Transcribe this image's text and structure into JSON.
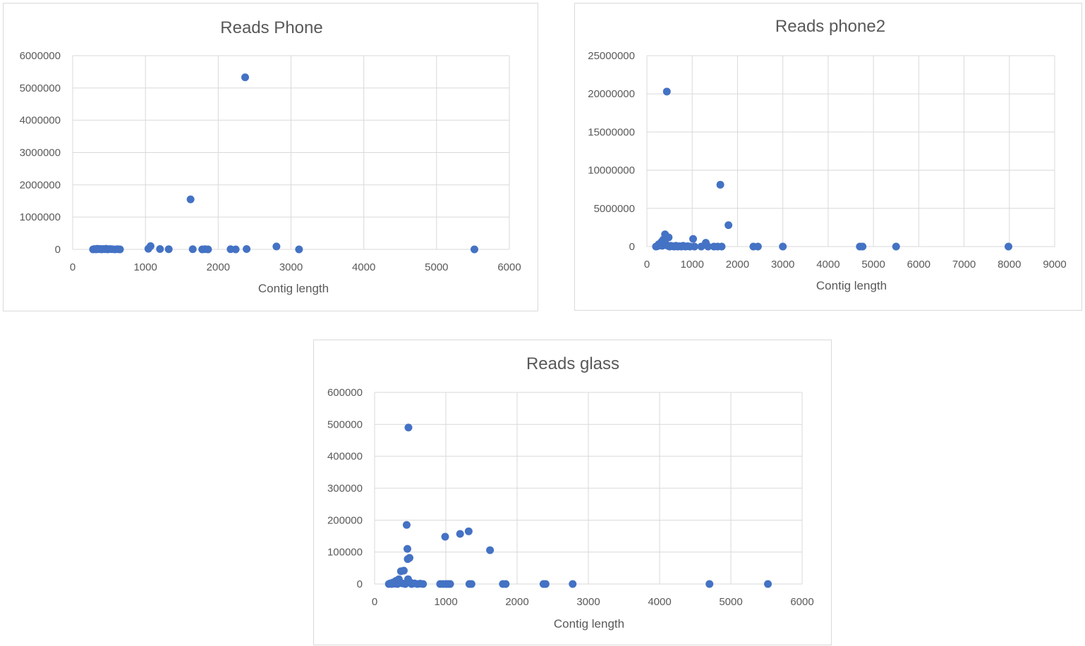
{
  "colors": {
    "series": "#4472c4",
    "grid": "#d9d9d9",
    "text": "#595959"
  },
  "chart_data": [
    {
      "id": "phone",
      "type": "scatter",
      "title": "Reads Phone",
      "xlabel": "Contig length",
      "ylabel": "",
      "xlim": [
        0,
        6000
      ],
      "ylim": [
        0,
        6000000
      ],
      "x_ticks": [
        0,
        1000,
        2000,
        3000,
        4000,
        5000,
        6000
      ],
      "y_ticks": [
        0,
        1000000,
        2000000,
        3000000,
        4000000,
        5000000,
        6000000
      ],
      "x_tick_labels": [
        "0",
        "1000",
        "2000",
        "3000",
        "4000",
        "5000",
        "6000"
      ],
      "y_tick_labels": [
        "0",
        "1000000",
        "2000000",
        "3000000",
        "4000000",
        "5000000",
        "6000000"
      ],
      "grid": true,
      "legend": "none",
      "points": [
        [
          280,
          0
        ],
        [
          300,
          10000
        ],
        [
          320,
          0
        ],
        [
          340,
          20000
        ],
        [
          360,
          5000
        ],
        [
          380,
          15000
        ],
        [
          400,
          0
        ],
        [
          420,
          10000
        ],
        [
          440,
          5000
        ],
        [
          460,
          20000
        ],
        [
          480,
          0
        ],
        [
          510,
          10000
        ],
        [
          540,
          5000
        ],
        [
          580,
          0
        ],
        [
          620,
          5000
        ],
        [
          650,
          0
        ],
        [
          1040,
          20000
        ],
        [
          1070,
          100000
        ],
        [
          1200,
          10000
        ],
        [
          1320,
          5000
        ],
        [
          1620,
          1550000
        ],
        [
          1650,
          5000
        ],
        [
          1780,
          0
        ],
        [
          1820,
          5000
        ],
        [
          1860,
          0
        ],
        [
          2170,
          5000
        ],
        [
          2240,
          0
        ],
        [
          2370,
          5330000
        ],
        [
          2390,
          10000
        ],
        [
          2800,
          90000
        ],
        [
          3110,
          0
        ],
        [
          5520,
          0
        ]
      ]
    },
    {
      "id": "phone2",
      "type": "scatter",
      "title": "Reads phone2",
      "xlabel": "Contig length",
      "ylabel": "",
      "xlim": [
        0,
        9000
      ],
      "ylim": [
        0,
        25000000
      ],
      "x_ticks": [
        0,
        1000,
        2000,
        3000,
        4000,
        5000,
        6000,
        7000,
        8000,
        9000
      ],
      "y_ticks": [
        0,
        5000000,
        10000000,
        15000000,
        20000000,
        25000000
      ],
      "x_tick_labels": [
        "0",
        "1000",
        "2000",
        "3000",
        "4000",
        "5000",
        "6000",
        "7000",
        "8000",
        "9000"
      ],
      "y_tick_labels": [
        "0",
        "5000000",
        "10000000",
        "15000000",
        "20000000",
        "25000000"
      ],
      "grid": true,
      "legend": "none",
      "points": [
        [
          200,
          0
        ],
        [
          230,
          50000
        ],
        [
          260,
          300000
        ],
        [
          290,
          150000
        ],
        [
          320,
          600000
        ],
        [
          340,
          100000
        ],
        [
          360,
          900000
        ],
        [
          380,
          200000
        ],
        [
          400,
          1600000
        ],
        [
          420,
          300000
        ],
        [
          440,
          20300000
        ],
        [
          460,
          100000
        ],
        [
          480,
          1200000
        ],
        [
          500,
          0
        ],
        [
          530,
          100000
        ],
        [
          560,
          50000
        ],
        [
          600,
          0
        ],
        [
          640,
          100000
        ],
        [
          680,
          0
        ],
        [
          720,
          50000
        ],
        [
          760,
          0
        ],
        [
          800,
          100000
        ],
        [
          850,
          0
        ],
        [
          900,
          50000
        ],
        [
          950,
          0
        ],
        [
          1020,
          1000000
        ],
        [
          1050,
          0
        ],
        [
          1200,
          0
        ],
        [
          1300,
          500000
        ],
        [
          1350,
          0
        ],
        [
          1480,
          0
        ],
        [
          1560,
          0
        ],
        [
          1620,
          8100000
        ],
        [
          1650,
          0
        ],
        [
          1800,
          2800000
        ],
        [
          2350,
          0
        ],
        [
          2450,
          0
        ],
        [
          3000,
          0
        ],
        [
          4700,
          0
        ],
        [
          4760,
          0
        ],
        [
          5500,
          0
        ],
        [
          7980,
          0
        ]
      ]
    },
    {
      "id": "glass",
      "type": "scatter",
      "title": "Reads glass",
      "xlabel": "Contig length",
      "ylabel": "",
      "xlim": [
        0,
        6000
      ],
      "ylim": [
        0,
        600000
      ],
      "x_ticks": [
        0,
        1000,
        2000,
        3000,
        4000,
        5000,
        6000
      ],
      "y_ticks": [
        0,
        100000,
        200000,
        300000,
        400000,
        500000,
        600000
      ],
      "x_tick_labels": [
        "0",
        "1000",
        "2000",
        "3000",
        "4000",
        "5000",
        "6000"
      ],
      "y_tick_labels": [
        "0",
        "100000",
        "200000",
        "300000",
        "400000",
        "500000",
        "600000"
      ],
      "grid": true,
      "legend": "none",
      "points": [
        [
          200,
          0
        ],
        [
          220,
          2000
        ],
        [
          240,
          0
        ],
        [
          260,
          5000
        ],
        [
          280,
          1000
        ],
        [
          300,
          10000
        ],
        [
          320,
          0
        ],
        [
          340,
          15000
        ],
        [
          360,
          3000
        ],
        [
          370,
          40000
        ],
        [
          390,
          2000
        ],
        [
          410,
          42000
        ],
        [
          430,
          0
        ],
        [
          450,
          185000
        ],
        [
          460,
          110000
        ],
        [
          465,
          78000
        ],
        [
          470,
          15000
        ],
        [
          475,
          490000
        ],
        [
          490,
          82000
        ],
        [
          500,
          5000
        ],
        [
          520,
          0
        ],
        [
          560,
          2000
        ],
        [
          600,
          0
        ],
        [
          640,
          1000
        ],
        [
          680,
          0
        ],
        [
          920,
          0
        ],
        [
          960,
          0
        ],
        [
          990,
          148000
        ],
        [
          1000,
          0
        ],
        [
          1030,
          0
        ],
        [
          1060,
          0
        ],
        [
          1200,
          157000
        ],
        [
          1320,
          165000
        ],
        [
          1330,
          0
        ],
        [
          1360,
          0
        ],
        [
          1620,
          106000
        ],
        [
          1800,
          0
        ],
        [
          1840,
          0
        ],
        [
          2370,
          0
        ],
        [
          2400,
          0
        ],
        [
          2780,
          0
        ],
        [
          4700,
          0
        ],
        [
          5520,
          0
        ]
      ]
    }
  ]
}
